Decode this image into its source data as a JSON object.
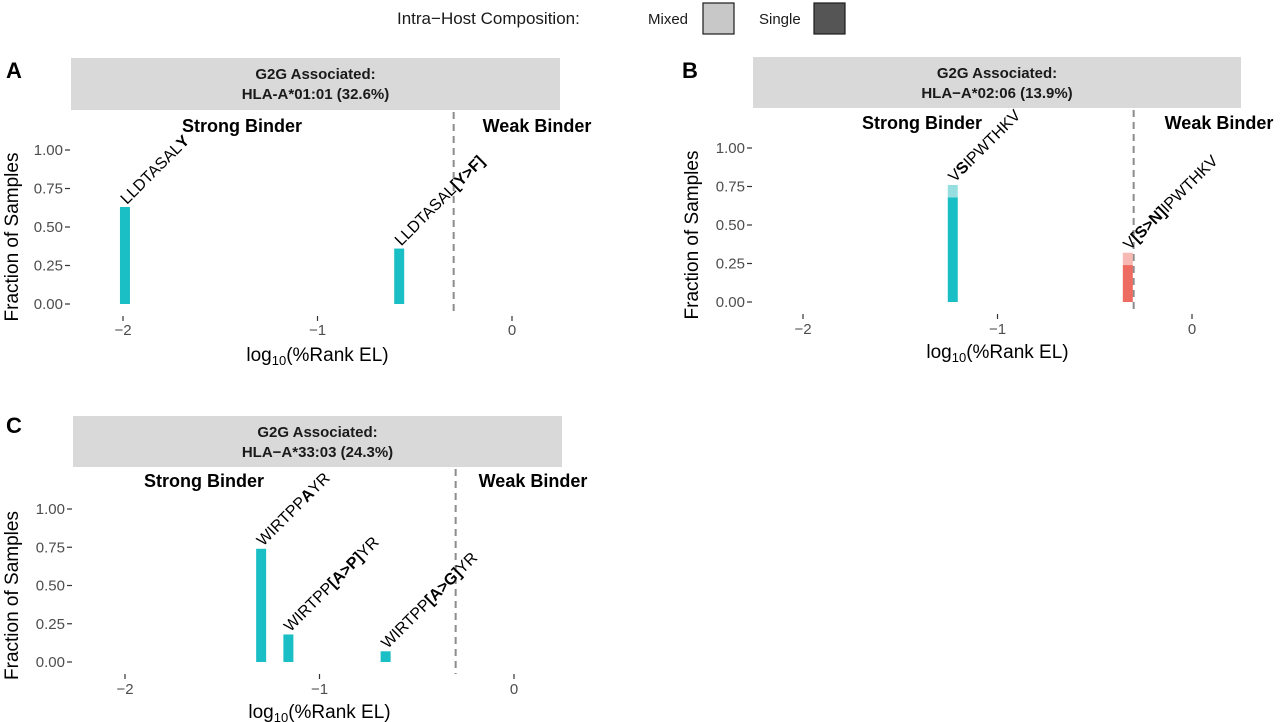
{
  "legend": {
    "title": "Intra−Host Composition:",
    "items": [
      {
        "label": "Mixed",
        "color": "#c8c8c8"
      },
      {
        "label": "Single",
        "color": "#555555"
      }
    ]
  },
  "colors": {
    "strong": "#1ABFC5",
    "strong_light": "#97DEE1",
    "weak": "#EE6B61",
    "weak_light": "#F6B9B3",
    "strip_bg": "#D9D9D9",
    "threshold": "#8c8c8c"
  },
  "chart_data": [
    {
      "panel": "A",
      "type": "bar",
      "strip_line1": "G2G Associated:",
      "strip_line2": "HLA-A*01:01 (32.6%)",
      "strong_label": "Strong Binder",
      "weak_label": "Weak Binder",
      "xlabel_prefix": "log",
      "xlabel_sub": "10",
      "xlabel_suffix": "(%Rank EL)",
      "ylabel": "Fraction of Samples",
      "xlim": [
        -2.2,
        0.25
      ],
      "ylim": [
        0,
        1.0
      ],
      "xticks": [
        -2,
        -1,
        0
      ],
      "xtick_labels": [
        "−2",
        "−1",
        "0"
      ],
      "yticks": [
        0,
        0.25,
        0.5,
        0.75,
        1.0
      ],
      "ytick_labels": [
        "0.00",
        "0.25",
        "0.50",
        "0.75",
        "1.00"
      ],
      "threshold": -0.3,
      "bars": [
        {
          "x": -1.99,
          "single": 0.63,
          "mixed": 0.0,
          "binder": "strong",
          "label": [
            {
              "t": "LLDTASAL",
              "b": false
            },
            {
              "t": "Y",
              "b": true
            }
          ]
        },
        {
          "x": -0.58,
          "single": 0.36,
          "mixed": 0.0,
          "binder": "strong",
          "label": [
            {
              "t": "LLDTASAL",
              "b": false
            },
            {
              "t": "[Y>F]",
              "b": true
            }
          ]
        }
      ]
    },
    {
      "panel": "B",
      "type": "bar",
      "strip_line1": "G2G Associated:",
      "strip_line2": "HLA−A*02:06 (13.9%)",
      "strong_label": "Strong Binder",
      "weak_label": "Weak Binder",
      "xlabel_prefix": "log",
      "xlabel_sub": "10",
      "xlabel_suffix": "(%Rank EL)",
      "ylabel": "Fraction of Samples",
      "xlim": [
        -2.2,
        0.25
      ],
      "ylim": [
        0,
        1.0
      ],
      "xticks": [
        -2,
        -1,
        0
      ],
      "xtick_labels": [
        "−2",
        "−1",
        "0"
      ],
      "yticks": [
        0,
        0.25,
        0.5,
        0.75,
        1.0
      ],
      "ytick_labels": [
        "0.00",
        "0.25",
        "0.50",
        "0.75",
        "1.00"
      ],
      "threshold": -0.3,
      "bars": [
        {
          "x": -1.23,
          "single": 0.68,
          "mixed": 0.08,
          "binder": "strong",
          "label": [
            {
              "t": "V",
              "b": false
            },
            {
              "t": "S",
              "b": true
            },
            {
              "t": "IPWTHKV",
              "b": false
            }
          ]
        },
        {
          "x": -0.33,
          "single": 0.24,
          "mixed": 0.08,
          "binder": "weak",
          "label": [
            {
              "t": "V",
              "b": false
            },
            {
              "t": "[S>N]",
              "b": true
            },
            {
              "t": "IPWTHKV",
              "b": false
            }
          ]
        }
      ]
    },
    {
      "panel": "C",
      "type": "bar",
      "strip_line1": "G2G Associated:",
      "strip_line2": "HLA−A*33:03 (24.3%)",
      "strong_label": "Strong Binder",
      "weak_label": "Weak Binder",
      "xlabel_prefix": "log",
      "xlabel_sub": "10",
      "xlabel_suffix": "(%Rank EL)",
      "ylabel": "Fraction of Samples",
      "xlim": [
        -2.2,
        0.25
      ],
      "ylim": [
        0,
        1.0
      ],
      "xticks": [
        -2,
        -1,
        0
      ],
      "xtick_labels": [
        "−2",
        "−1",
        "0"
      ],
      "yticks": [
        0,
        0.25,
        0.5,
        0.75,
        1.0
      ],
      "ytick_labels": [
        "0.00",
        "0.25",
        "0.50",
        "0.75",
        "1.00"
      ],
      "threshold": -0.3,
      "bars": [
        {
          "x": -1.3,
          "single": 0.74,
          "mixed": 0.0,
          "binder": "strong",
          "label": [
            {
              "t": "WIRTPP",
              "b": false
            },
            {
              "t": "A",
              "b": true
            },
            {
              "t": "YR",
              "b": false
            }
          ]
        },
        {
          "x": -1.16,
          "single": 0.18,
          "mixed": 0.0,
          "binder": "strong",
          "label": [
            {
              "t": "WIRTPP",
              "b": false
            },
            {
              "t": "[A>P]",
              "b": true
            },
            {
              "t": "YR",
              "b": false
            }
          ]
        },
        {
          "x": -0.66,
          "single": 0.07,
          "mixed": 0.0,
          "binder": "strong",
          "label": [
            {
              "t": "WIRTPP",
              "b": false
            },
            {
              "t": "[A>G]",
              "b": true
            },
            {
              "t": "YR",
              "b": false
            }
          ]
        }
      ]
    }
  ]
}
